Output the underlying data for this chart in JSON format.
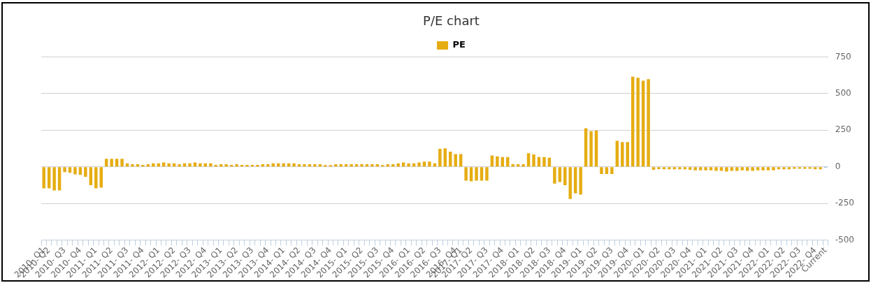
{
  "chart_data": {
    "type": "bar",
    "title": "P/E chart",
    "categories": [
      "2010- Q1",
      "2010- Q2",
      null,
      null,
      "2010- Q3",
      null,
      null,
      "2010- Q4",
      null,
      null,
      "2011- Q1",
      null,
      null,
      "2011- Q2",
      null,
      null,
      "2011- Q3",
      null,
      null,
      "2011- Q4",
      null,
      null,
      "2012- Q1",
      null,
      null,
      "2012- Q2",
      null,
      null,
      "2012- Q3",
      null,
      null,
      "2012- Q4",
      null,
      null,
      "2013- Q1",
      null,
      null,
      "2013- Q2",
      null,
      null,
      "2013- Q3",
      null,
      null,
      "2013- Q4",
      null,
      null,
      "2014- Q1",
      null,
      null,
      "2014- Q2",
      null,
      null,
      "2014- Q3",
      null,
      null,
      "2014- Q4",
      null,
      null,
      "2015- Q1",
      null,
      null,
      "2015- Q2",
      null,
      null,
      "2015- Q3",
      null,
      null,
      "2015- Q4",
      null,
      null,
      "2016- Q1",
      null,
      null,
      "2016- Q2",
      null,
      null,
      "2016- Q3",
      null,
      null,
      "2016- Q4",
      "2017- Q1",
      null,
      "2017- Q2",
      null,
      null,
      "2017- Q3",
      null,
      null,
      "2017- Q4",
      null,
      null,
      "2018- Q1",
      null,
      null,
      "2018- Q2",
      null,
      null,
      "2018- Q3",
      null,
      null,
      "2018- Q4",
      null,
      null,
      "2019- Q1",
      null,
      null,
      "2019- Q2",
      null,
      null,
      "2019- Q3",
      null,
      null,
      "2019- Q4",
      null,
      null,
      "2020- Q1",
      null,
      null,
      "2020- Q2",
      null,
      null,
      "2020- Q3",
      null,
      null,
      "2020- Q4",
      null,
      null,
      "2021- Q1",
      null,
      null,
      "2021- Q2",
      null,
      null,
      "2021- Q3",
      null,
      null,
      "2021- Q4",
      null,
      null,
      "2022- Q1",
      null,
      null,
      "2022- Q2",
      null,
      null,
      "2022- Q3",
      null,
      null,
      "2022- Q4",
      null,
      "Current"
    ],
    "series": [
      {
        "name": "PE",
        "color": "#e6ad12",
        "colors": [
          "#e6ad12",
          "#e6ad12",
          "#e6ad12",
          "#e6ad12",
          "#e6ad12",
          "#e6ad12",
          "#e6ad12",
          "#e6ad12",
          "#e6ad12",
          "#e6ad12",
          "#e6ad12",
          "#e6ad12",
          "#e6ad12",
          "#e6ad12",
          "#e6ad12",
          "#e6ad12",
          "#e6ad12",
          "#e6ad12",
          "#e6ad12",
          "#e6ad12",
          "#e6ad12",
          "#e6ad12",
          "#e6ad12",
          "#e6ad12",
          "#e6ad12",
          "#e6ad12",
          "#e6ad12",
          "#e6ad12",
          "#e6ad12",
          "#e6ad12",
          "#e6ad12",
          "#e6ad12",
          "#e6ad12",
          "#e6ad12",
          "#e6ad12",
          "#e6ad12",
          "#e6ad12",
          "#e6ad12",
          "#e6ad12",
          "#e6ad12",
          "#e6ad12",
          "#e6ad12",
          "#e6ad12",
          "#e6ad12",
          "#e6ad12",
          "#e6ad12",
          "#e6ad12",
          "#e6ad12",
          "#e6ad12",
          "#e6ad12",
          "#e6ad12",
          "#e6ad12",
          "#e6ad12",
          "#e6ad12",
          "#e6ad12",
          "#e6ad12",
          "#e6ad12",
          "#e6ad12",
          "#e6ad12",
          "#e6ad12",
          "#e6ad12",
          "#e6ad12",
          "#e6ad12",
          "#e6ad12",
          "#e6ad12",
          "#e6ad12",
          "#e6ad12",
          "#e6ad12",
          "#e6ad12",
          "#e6ad12",
          "#e6ad12",
          "#e6ad12",
          "#e6ad12",
          "#e6ad12",
          "#e6ad12",
          "#e6ad12",
          "#e6ad12",
          "#e6ad12",
          "#e6ad12",
          "#e6ad12",
          "#e6ad12",
          "#e6ad12",
          "#e6ad12",
          "#e6ad12",
          "#e6ad12",
          "#e6ad12",
          "#e6ad12",
          "#e6ad12",
          "#e6ad12",
          "#e6ad12",
          "#e6ad12",
          "#e6ad12",
          "#e6ad12",
          "#e6ad12",
          "#e6ad12",
          "#e6ad12",
          "#e6ad12",
          "#e6ad12",
          "#e6ad12",
          "#e6ad12",
          "#e6ad12",
          "#e6ad12",
          "#e6ad12",
          "#e6ad12",
          "#e6ad12",
          "#e6ad12",
          "#e6ad12",
          "#e6ad12",
          "#e6ad12",
          "#e6ad12",
          "#e6ad12",
          "#e6ad12",
          "#e6ad12",
          "#e6ad12",
          "#e6ad12",
          "#e6ad12",
          "#e6ad12",
          "#e6ad12",
          "#e6ad12",
          "#e6ad12",
          "#e6ad12",
          "#e6ad12",
          "#e6ad12",
          "#e6ad12",
          "#e6ad12",
          "#e6ad12",
          "#e6ad12",
          "#e6ad12",
          "#e6ad12",
          "#e6ad12",
          "#e6ad12",
          "#e6ad12",
          "#e6ad12",
          "#e6ad12",
          "#e6ad12",
          "#e6ad12",
          "#e6ad12",
          "#e6ad12",
          "#e6ad12",
          "#e6ad12",
          "#e6ad12",
          "#e6ad12",
          "#e6ad12",
          "#e6ad12",
          "#e6ad12",
          "#e6ad12",
          "#e6ad12",
          "#e6ad12",
          "#e6ad12",
          "#e6ad12",
          "#3a8fd0"
        ],
        "values": [
          -147,
          -147,
          -161,
          -161,
          -36,
          -41,
          -52,
          -55,
          -68,
          -126,
          -147,
          -142,
          55,
          55,
          55,
          55,
          24,
          17,
          17,
          13,
          17,
          24,
          24,
          30,
          24,
          24,
          17,
          24,
          24,
          30,
          24,
          24,
          24,
          13,
          17,
          17,
          13,
          17,
          13,
          13,
          13,
          13,
          17,
          17,
          24,
          24,
          24,
          24,
          24,
          17,
          17,
          17,
          17,
          17,
          11,
          11,
          17,
          17,
          17,
          17,
          17,
          17,
          17,
          17,
          17,
          11,
          17,
          17,
          24,
          30,
          24,
          24,
          30,
          35,
          35,
          24,
          122,
          126,
          103,
          87,
          87,
          -95,
          -100,
          -95,
          -95,
          -95,
          77,
          71,
          66,
          66,
          17,
          17,
          17,
          93,
          84,
          66,
          66,
          62,
          -115,
          -104,
          -126,
          -220,
          -182,
          -190,
          264,
          243,
          248,
          -49,
          -49,
          -49,
          177,
          169,
          169,
          615,
          608,
          588,
          599,
          -21,
          -16,
          -17,
          -17,
          -17,
          -17,
          -17,
          -21,
          -24,
          -24,
          -24,
          -24,
          -28,
          -28,
          -33,
          -28,
          -28,
          -24,
          -28,
          -28,
          -24,
          -24,
          -24,
          -24,
          -17,
          -17,
          -17,
          -13,
          -13,
          -13,
          -13,
          -17,
          -17,
          -5
        ]
      }
    ],
    "ylim": [
      -500,
      750
    ],
    "yticks": [
      -500,
      -250,
      0,
      250,
      500,
      750
    ],
    "grid": "y",
    "legend": "top"
  }
}
